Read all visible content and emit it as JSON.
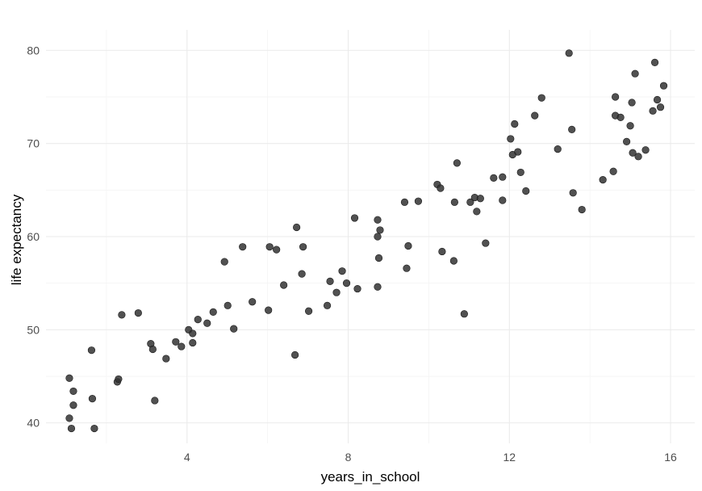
{
  "chart_data": {
    "type": "scatter",
    "xlabel": "years_in_school",
    "ylabel": "life expectancy",
    "xlim": [
      0.5,
      16.6
    ],
    "ylim": [
      37.8,
      82.2
    ],
    "x_ticks": [
      4,
      8,
      12,
      16
    ],
    "y_ticks": [
      40,
      50,
      60,
      70,
      80
    ],
    "x_tick_labels": [
      "4",
      "8",
      "12",
      "16"
    ],
    "y_tick_labels": [
      "40",
      "50",
      "60",
      "70",
      "80"
    ],
    "grid": true,
    "legend": "none",
    "point_color": "#333333",
    "points": [
      [
        1.08,
        44.8
      ],
      [
        1.08,
        40.5
      ],
      [
        1.13,
        39.4
      ],
      [
        1.18,
        43.4
      ],
      [
        1.18,
        41.9
      ],
      [
        1.63,
        47.8
      ],
      [
        1.65,
        42.6
      ],
      [
        1.7,
        39.4
      ],
      [
        2.27,
        44.4
      ],
      [
        2.3,
        44.7
      ],
      [
        2.38,
        51.6
      ],
      [
        2.79,
        51.8
      ],
      [
        3.1,
        48.5
      ],
      [
        3.15,
        47.9
      ],
      [
        3.2,
        42.4
      ],
      [
        3.48,
        46.9
      ],
      [
        3.72,
        48.7
      ],
      [
        3.86,
        48.2
      ],
      [
        4.04,
        50.0
      ],
      [
        4.27,
        51.1
      ],
      [
        4.14,
        49.6
      ],
      [
        4.14,
        48.6
      ],
      [
        4.5,
        50.7
      ],
      [
        4.65,
        51.9
      ],
      [
        4.93,
        57.3
      ],
      [
        5.01,
        52.6
      ],
      [
        5.16,
        50.1
      ],
      [
        5.38,
        58.9
      ],
      [
        5.62,
        53.0
      ],
      [
        6.02,
        52.1
      ],
      [
        6.05,
        58.9
      ],
      [
        6.22,
        58.6
      ],
      [
        6.4,
        54.8
      ],
      [
        6.68,
        47.3
      ],
      [
        6.72,
        61.0
      ],
      [
        6.85,
        56.0
      ],
      [
        6.88,
        58.9
      ],
      [
        7.02,
        52.0
      ],
      [
        7.48,
        52.6
      ],
      [
        7.55,
        55.2
      ],
      [
        7.71,
        54.0
      ],
      [
        7.85,
        56.3
      ],
      [
        7.96,
        55.0
      ],
      [
        8.16,
        62.0
      ],
      [
        8.23,
        54.4
      ],
      [
        8.73,
        61.8
      ],
      [
        8.73,
        60.0
      ],
      [
        8.79,
        60.7
      ],
      [
        8.76,
        57.7
      ],
      [
        8.73,
        54.6
      ],
      [
        9.4,
        63.7
      ],
      [
        9.45,
        56.6
      ],
      [
        9.49,
        59.0
      ],
      [
        9.74,
        63.8
      ],
      [
        10.21,
        65.6
      ],
      [
        10.29,
        65.2
      ],
      [
        10.33,
        58.4
      ],
      [
        10.62,
        57.4
      ],
      [
        10.64,
        63.7
      ],
      [
        10.7,
        67.9
      ],
      [
        10.88,
        51.7
      ],
      [
        11.03,
        63.7
      ],
      [
        11.14,
        64.2
      ],
      [
        11.19,
        62.7
      ],
      [
        11.28,
        64.1
      ],
      [
        11.41,
        59.3
      ],
      [
        11.61,
        66.3
      ],
      [
        11.83,
        66.4
      ],
      [
        11.83,
        63.9
      ],
      [
        12.03,
        70.5
      ],
      [
        12.08,
        68.8
      ],
      [
        12.13,
        72.1
      ],
      [
        12.21,
        69.1
      ],
      [
        12.28,
        66.9
      ],
      [
        12.41,
        64.9
      ],
      [
        12.63,
        73.0
      ],
      [
        12.8,
        74.9
      ],
      [
        13.2,
        69.4
      ],
      [
        13.48,
        79.7
      ],
      [
        13.55,
        71.5
      ],
      [
        13.58,
        64.7
      ],
      [
        13.8,
        62.9
      ],
      [
        14.32,
        66.1
      ],
      [
        14.58,
        67.0
      ],
      [
        14.63,
        75.0
      ],
      [
        14.63,
        73.0
      ],
      [
        14.76,
        72.8
      ],
      [
        14.91,
        70.2
      ],
      [
        15.0,
        71.9
      ],
      [
        15.04,
        74.4
      ],
      [
        15.06,
        69.0
      ],
      [
        15.12,
        77.5
      ],
      [
        15.2,
        68.6
      ],
      [
        15.38,
        69.3
      ],
      [
        15.56,
        73.5
      ],
      [
        15.61,
        78.7
      ],
      [
        15.67,
        74.7
      ],
      [
        15.75,
        73.9
      ],
      [
        15.83,
        76.2
      ]
    ]
  }
}
